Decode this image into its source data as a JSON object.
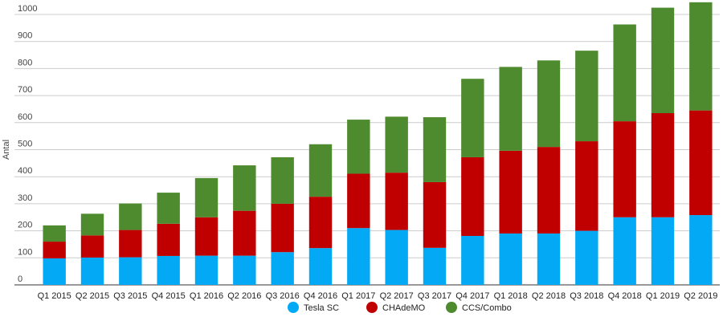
{
  "chart_data": {
    "type": "bar",
    "stacked": true,
    "title": "",
    "xlabel": "",
    "ylabel": "Antal",
    "ylim": [
      0,
      1000
    ],
    "yticks": [
      0,
      100,
      200,
      300,
      400,
      500,
      600,
      700,
      800,
      900,
      1000
    ],
    "grid": true,
    "legend_position": "bottom",
    "categories": [
      "Q1 2015",
      "Q2 2015",
      "Q3 2015",
      "Q4 2015",
      "Q1 2016",
      "Q2 2016",
      "Q3 2016",
      "Q4 2016",
      "Q1 2017",
      "Q2 2017",
      "Q3 2017",
      "Q4 2017",
      "Q1 2018",
      "Q2 2018",
      "Q3 2018",
      "Q4 2018",
      "Q1 2019",
      "Q2 2019"
    ],
    "series": [
      {
        "name": "Tesla SC",
        "color": "#03a9f4",
        "values": [
          98,
          101,
          102,
          107,
          108,
          108,
          121,
          136,
          210,
          203,
          137,
          181,
          190,
          190,
          200,
          250,
          250,
          258
        ]
      },
      {
        "name": "CHAdeMO",
        "color": "#c00000",
        "values": [
          62,
          82,
          101,
          119,
          142,
          166,
          179,
          190,
          201,
          212,
          243,
          291,
          306,
          320,
          331,
          355,
          385,
          387
        ]
      },
      {
        "name": "CCS/Combo",
        "color": "#4e8a2e",
        "values": [
          60,
          80,
          98,
          115,
          145,
          168,
          172,
          194,
          200,
          207,
          240,
          290,
          310,
          320,
          335,
          358,
          390,
          400
        ]
      }
    ]
  }
}
